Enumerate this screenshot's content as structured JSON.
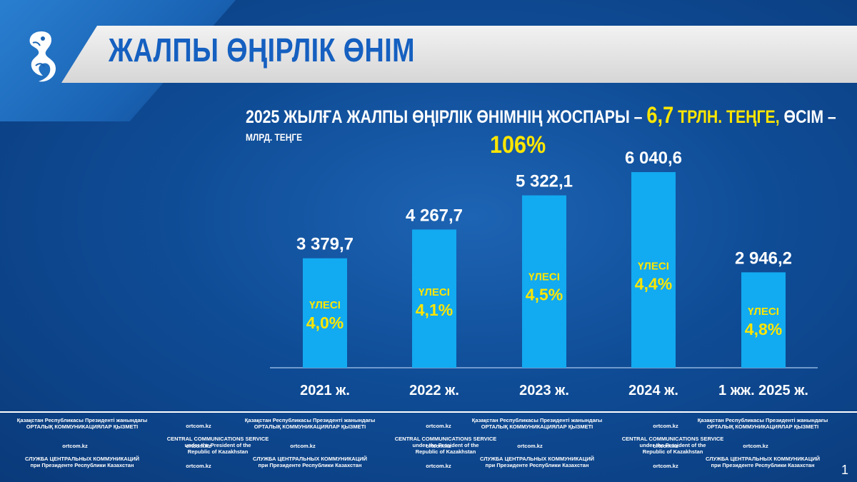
{
  "header": {
    "title": "ЖАЛПЫ ӨҢІРЛІК ӨНІМ"
  },
  "subtitle": {
    "part1": "2025 ЖЫЛҒА ЖАЛПЫ ӨҢІРЛІК ӨНІМНІҢ ЖОСПАРЫ – ",
    "value": "6,7",
    "unit": " ТРЛН. ТЕҢГЕ,",
    "part2": " ӨСІМ –",
    "growth": "106%"
  },
  "colors": {
    "bar": "#12aaf0",
    "highlight": "#ffe600",
    "title": "#1560c0"
  },
  "chart_data": {
    "type": "bar",
    "unit_label": "МЛРД. ТЕҢГЕ",
    "categories": [
      "2021 ж.",
      "2022 ж.",
      "2023 ж.",
      "2024 ж.",
      "1 жж. 2025 ж."
    ],
    "values": [
      3379.7,
      4267.7,
      5322.1,
      6040.6,
      2946.2
    ],
    "value_labels": [
      "3 379,7",
      "4 267,7",
      "5 322,1",
      "6 040,6",
      "2 946,2"
    ],
    "share_label": "ҮЛЕСІ",
    "shares": [
      "4,0%",
      "4,1%",
      "4,5%",
      "4,4%",
      "4,8%"
    ]
  },
  "footer": {
    "org_kz_line1": "Қазақстан Республикасы Президенті жанындағы",
    "org_kz_line2": "ОРТАЛЫҚ КОММУНИКАЦИЯЛАР ҚЫЗМЕТІ",
    "org_en_line1": "CENTRAL COMMUNICATIONS SERVICE",
    "org_en_line2": "under the President of the",
    "org_en_line3": "Republic of Kazakhstan",
    "org_ru_line1": "СЛУЖБА ЦЕНТРАЛЬНЫХ КОММУНИКАЦИЙ",
    "org_ru_line2": "при Президенте Республики Казахстан",
    "site": "ortcom.kz"
  },
  "page_number": "1"
}
